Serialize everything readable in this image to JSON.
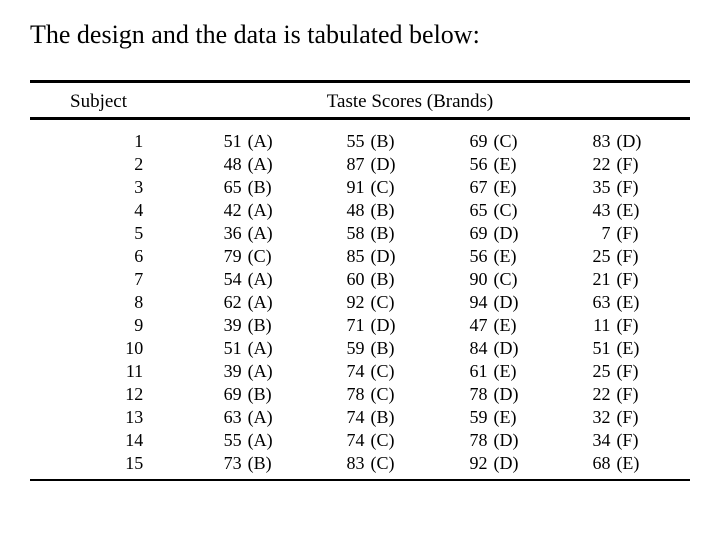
{
  "caption": "The design and the data is tabulated below:",
  "headers": {
    "subject": "Subject",
    "scores": "Taste Scores (Brands)"
  },
  "table": {
    "type": "table",
    "font_family": "Times New Roman",
    "font_size_header": 19,
    "font_size_body": 18,
    "border_color": "#000000",
    "top_rule_width": 3,
    "mid_rule_width": 3,
    "bottom_rule_width": 2,
    "columns": [
      "Subject",
      "Score1",
      "Brand1",
      "Score2",
      "Brand2",
      "Score3",
      "Brand3",
      "Score4",
      "Brand4"
    ],
    "rows": [
      {
        "subject": "1",
        "s1": "51",
        "b1": "(A)",
        "s2": "55",
        "b2": "(B)",
        "s3": "69",
        "b3": "(C)",
        "s4": "83",
        "b4": "(D)"
      },
      {
        "subject": "2",
        "s1": "48",
        "b1": "(A)",
        "s2": "87",
        "b2": "(D)",
        "s3": "56",
        "b3": "(E)",
        "s4": "22",
        "b4": "(F)"
      },
      {
        "subject": "3",
        "s1": "65",
        "b1": "(B)",
        "s2": "91",
        "b2": "(C)",
        "s3": "67",
        "b3": "(E)",
        "s4": "35",
        "b4": "(F)"
      },
      {
        "subject": "4",
        "s1": "42",
        "b1": "(A)",
        "s2": "48",
        "b2": "(B)",
        "s3": "65",
        "b3": "(C)",
        "s4": "43",
        "b4": "(E)"
      },
      {
        "subject": "5",
        "s1": "36",
        "b1": "(A)",
        "s2": "58",
        "b2": "(B)",
        "s3": "69",
        "b3": "(D)",
        "s4": "7",
        "b4": "(F)"
      },
      {
        "subject": "6",
        "s1": "79",
        "b1": "(C)",
        "s2": "85",
        "b2": "(D)",
        "s3": "56",
        "b3": "(E)",
        "s4": "25",
        "b4": "(F)"
      },
      {
        "subject": "7",
        "s1": "54",
        "b1": "(A)",
        "s2": "60",
        "b2": "(B)",
        "s3": "90",
        "b3": "(C)",
        "s4": "21",
        "b4": "(F)"
      },
      {
        "subject": "8",
        "s1": "62",
        "b1": "(A)",
        "s2": "92",
        "b2": "(C)",
        "s3": "94",
        "b3": "(D)",
        "s4": "63",
        "b4": "(E)"
      },
      {
        "subject": "9",
        "s1": "39",
        "b1": "(B)",
        "s2": "71",
        "b2": "(D)",
        "s3": "47",
        "b3": "(E)",
        "s4": "11",
        "b4": "(F)"
      },
      {
        "subject": "10",
        "s1": "51",
        "b1": "(A)",
        "s2": "59",
        "b2": "(B)",
        "s3": "84",
        "b3": "(D)",
        "s4": "51",
        "b4": "(E)"
      },
      {
        "subject": "11",
        "s1": "39",
        "b1": "(A)",
        "s2": "74",
        "b2": "(C)",
        "s3": "61",
        "b3": "(E)",
        "s4": "25",
        "b4": "(F)"
      },
      {
        "subject": "12",
        "s1": "69",
        "b1": "(B)",
        "s2": "78",
        "b2": "(C)",
        "s3": "78",
        "b3": "(D)",
        "s4": "22",
        "b4": "(F)"
      },
      {
        "subject": "13",
        "s1": "63",
        "b1": "(A)",
        "s2": "74",
        "b2": "(B)",
        "s3": "59",
        "b3": "(E)",
        "s4": "32",
        "b4": "(F)"
      },
      {
        "subject": "14",
        "s1": "55",
        "b1": "(A)",
        "s2": "74",
        "b2": "(C)",
        "s3": "78",
        "b3": "(D)",
        "s4": "34",
        "b4": "(F)"
      },
      {
        "subject": "15",
        "s1": "73",
        "b1": "(B)",
        "s2": "83",
        "b2": "(C)",
        "s3": "92",
        "b3": "(D)",
        "s4": "68",
        "b4": "(E)"
      }
    ]
  }
}
